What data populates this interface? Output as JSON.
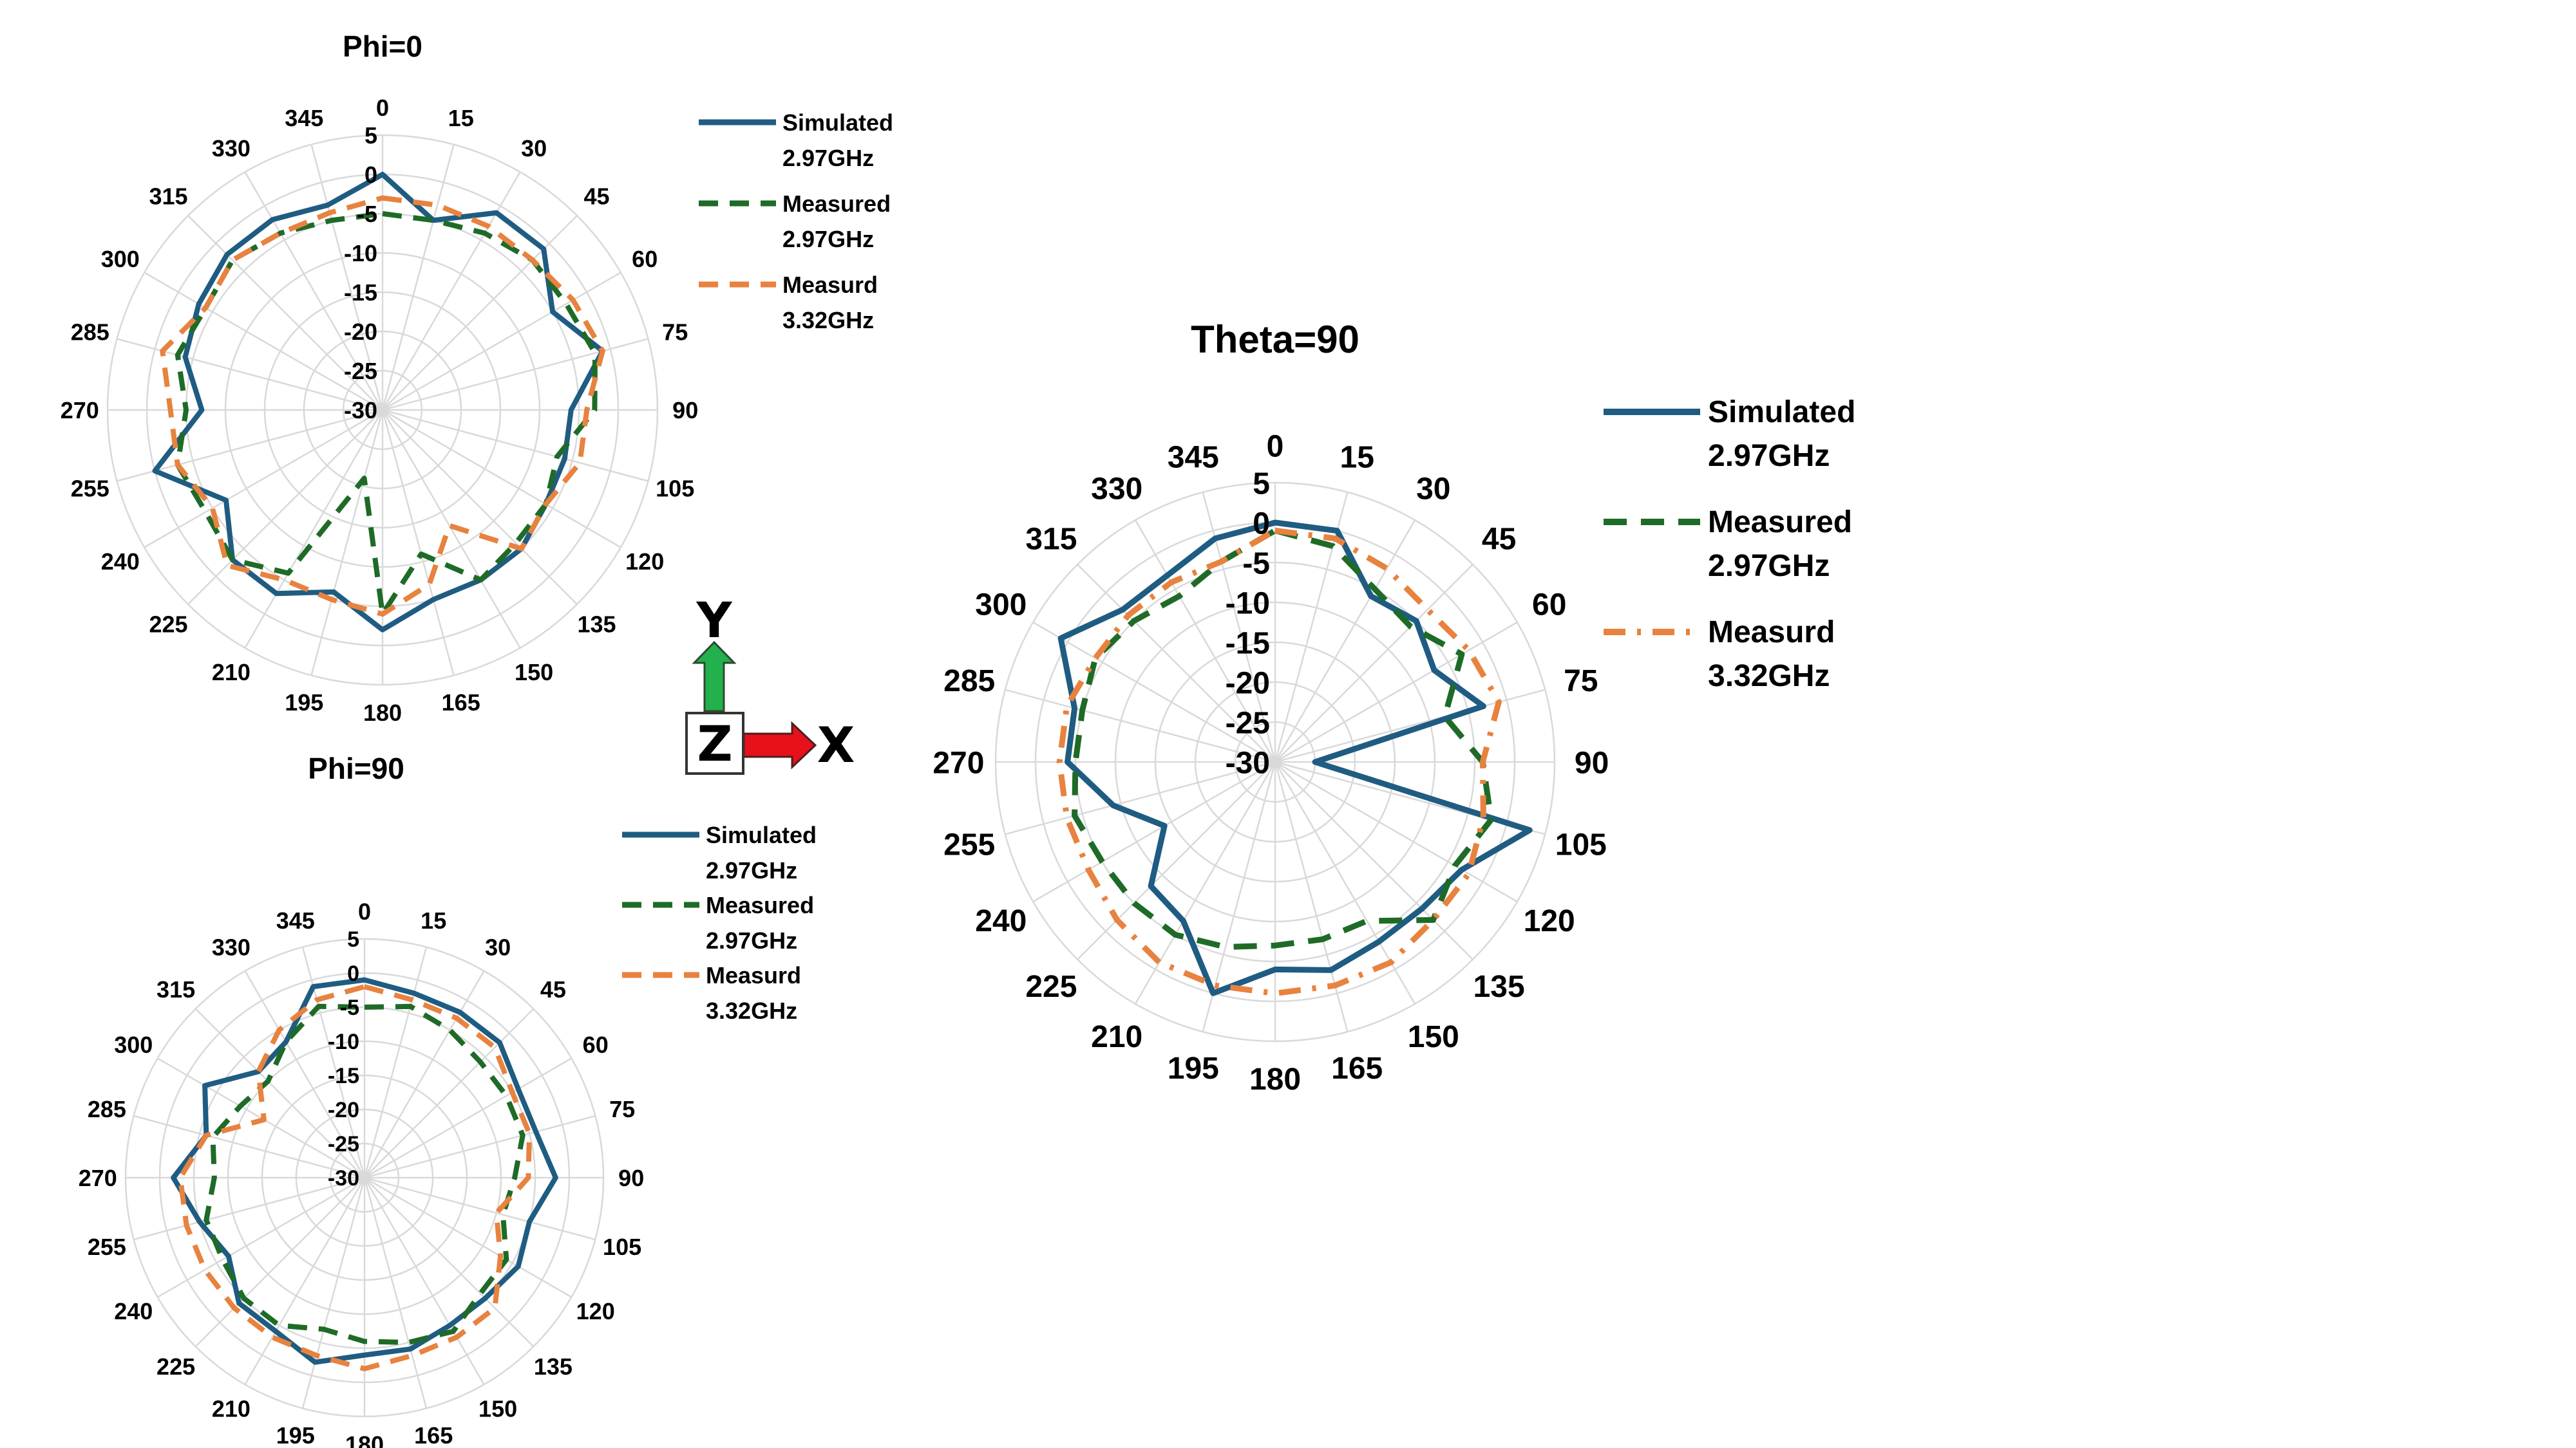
{
  "colors": {
    "simulated": "#1f5c82",
    "measured_297": "#1e6b27",
    "measured_332": "#e8823f",
    "grid": "#d9d9d9",
    "axis_x": "#e8101b",
    "axis_y": "#22b14c"
  },
  "legend_labels": {
    "simulated": "Simulated",
    "measured": "Measured",
    "measurd": "Measurd",
    "freq_297": "2.97GHz",
    "freq_332": "3.32GHz"
  },
  "axes_indicator": {
    "y": "Y",
    "z": "Z",
    "x": "X"
  },
  "chart_data": [
    {
      "type": "radar",
      "title": "Phi=0",
      "angle_labels": [
        "0",
        "15",
        "30",
        "45",
        "60",
        "75",
        "90",
        "105",
        "120",
        "135",
        "150",
        "165",
        "180",
        "195",
        "210",
        "225",
        "240",
        "255",
        "270",
        "285",
        "300",
        "315",
        "330",
        "345"
      ],
      "radial_labels": [
        "5",
        "0",
        "-5",
        "-10",
        "-15",
        "-20",
        "-25",
        "-30"
      ],
      "rlim": [
        -30,
        5
      ],
      "grid": true,
      "legend": "right",
      "series": [
        {
          "name": "Simulated 2.97GHz",
          "style": "solid",
          "values": [
            0,
            -5,
            -1,
            -1,
            -5,
            -1,
            -6,
            -6,
            -6,
            -5,
            -5,
            -5,
            -2,
            -6,
            -3,
            -3,
            -7,
            0,
            -7,
            -4,
            -3,
            -2,
            -2,
            -3
          ]
        },
        {
          "name": "Measured 2.97GHz",
          "style": "dashed",
          "values": [
            -5,
            -5,
            -4,
            -3,
            -3,
            -2,
            -3,
            -7,
            -6,
            -6,
            -5,
            -11,
            -4,
            -21,
            -6,
            -3,
            -4,
            -3,
            -5,
            -3,
            -4,
            -3,
            -4,
            -5
          ]
        },
        {
          "name": "Measurd 3.32GHz",
          "style": "dashed",
          "values": [
            -3,
            -3,
            -3,
            -3,
            -2,
            -1,
            -4,
            -4,
            -6,
            -5,
            -13,
            -7,
            -4,
            -5,
            -5,
            -2,
            -5,
            -3,
            -3,
            -1,
            -4,
            -3,
            -4,
            -4
          ]
        }
      ]
    },
    {
      "type": "radar",
      "title": "Phi=90",
      "angle_labels": [
        "0",
        "15",
        "30",
        "45",
        "60",
        "75",
        "90",
        "105",
        "120",
        "135",
        "150",
        "165",
        "180",
        "195",
        "210",
        "225",
        "240",
        "255",
        "270",
        "285",
        "300",
        "315",
        "330",
        "345"
      ],
      "radial_labels": [
        "5",
        "0",
        "-5",
        "-10",
        "-15",
        "-20",
        "-25",
        "-30"
      ],
      "rlim": [
        -30,
        5
      ],
      "grid": true,
      "legend": "top-right",
      "series": [
        {
          "name": "Simulated 2.97GHz",
          "style": "solid",
          "values": [
            -1,
            -2,
            -2,
            -2,
            -4,
            -4,
            -2,
            -5,
            -4,
            -5,
            -5,
            -4,
            -4,
            -2,
            -4,
            -4,
            -7,
            -5,
            -2,
            -6,
            -3,
            -8,
            -7,
            -1
          ]
        },
        {
          "name": "Measured 2.97GHz",
          "style": "dashed",
          "values": [
            -5,
            -4,
            -5,
            -6,
            -6,
            -6,
            -8,
            -9,
            -6,
            -6,
            -4,
            -5,
            -6,
            -7,
            -5,
            -5,
            -6,
            -6,
            -8,
            -7,
            -9,
            -10,
            -7,
            -4
          ]
        },
        {
          "name": "Measurd 3.32GHz",
          "style": "dashed",
          "values": [
            -2,
            -3,
            -3,
            -3,
            -5,
            -5,
            -6,
            -10,
            -7,
            -3,
            -3,
            -3,
            -2,
            -3,
            -3,
            -3,
            -3,
            -3,
            -3,
            -6,
            -13,
            -8,
            -5,
            -3
          ]
        }
      ]
    },
    {
      "type": "radar",
      "title": "Theta=90",
      "angle_labels": [
        "0",
        "15",
        "30",
        "45",
        "60",
        "75",
        "90",
        "105",
        "120",
        "135",
        "150",
        "165",
        "180",
        "195",
        "210",
        "225",
        "240",
        "255",
        "270",
        "285",
        "300",
        "315",
        "330",
        "345"
      ],
      "radial_labels": [
        "5",
        "0",
        "-5",
        "-10",
        "-15",
        "-20",
        "-25",
        "-30"
      ],
      "rlim": [
        -30,
        5
      ],
      "grid": true,
      "legend": "right",
      "series": [
        {
          "name": "Simulated 2.97GHz",
          "style": "solid",
          "values": [
            0,
            0,
            -6,
            -5,
            -7,
            -3,
            -25,
            3,
            -3,
            -4,
            -4,
            -3,
            -4,
            0,
            -7,
            -8,
            -14,
            -9,
            -4,
            -4,
            1,
            -3,
            -3,
            -1
          ]
        },
        {
          "name": "Measured 2.97GHz",
          "style": "dashed",
          "values": [
            -1,
            -2,
            -5,
            -6,
            -3,
            -8,
            -4,
            -2,
            -4,
            -2,
            -7,
            -7,
            -7,
            -6,
            -5,
            -5,
            -5,
            -4,
            -5,
            -5,
            -4,
            -5,
            -6,
            -4
          ]
        },
        {
          "name": "Measurd 3.32GHz",
          "style": "dashdot",
          "values": [
            -1,
            -1,
            -2,
            -3,
            -2,
            -1,
            -4,
            -3,
            -2,
            -2,
            -1,
            -1,
            -1,
            -1,
            -1,
            -2,
            -3,
            -3,
            -3,
            -3,
            -4,
            -4,
            -4,
            -4
          ]
        }
      ]
    }
  ]
}
